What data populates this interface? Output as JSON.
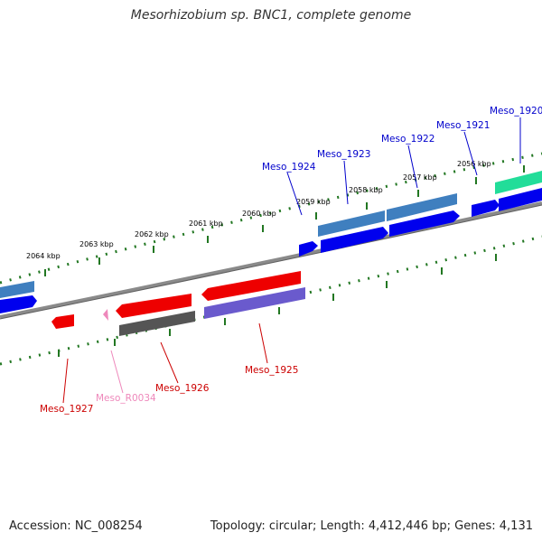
{
  "title": "Mesorhizobium sp. BNC1, complete genome",
  "footer": {
    "accession": "Accession: NC_008254",
    "topology": "Topology: circular; Length: 4,412,446 bp; Genes: 4,131"
  },
  "ruler_labels": [
    "2064 kbp",
    "2063 kbp",
    "2062 kbp",
    "2061 kbp",
    "2060 kbp",
    "2059 kbp",
    "2058 kbp",
    "2057 kbp",
    "2056 kbp"
  ],
  "gene_labels": {
    "meso_1920": "Meso_1920",
    "meso_1921": "Meso_1921",
    "meso_1922": "Meso_1922",
    "meso_1923": "Meso_1923",
    "meso_1924": "Meso_1924",
    "meso_1925": "Meso_1925",
    "meso_1926": "Meso_1926",
    "meso_1927": "Meso_1927",
    "meso_r0034": "Meso_R0034"
  },
  "colors": {
    "forward_cds": "#0000ee",
    "forward_cds_shadow": "#3f7fbf",
    "reverse_cds": "#ee0000",
    "reverse_shadow": "#555555",
    "rrna": "#ee88bb",
    "backbone": "#888888",
    "ticks": "#227722",
    "teal_gene": "#22dd99",
    "purple_shadow": "#6a5acd"
  }
}
